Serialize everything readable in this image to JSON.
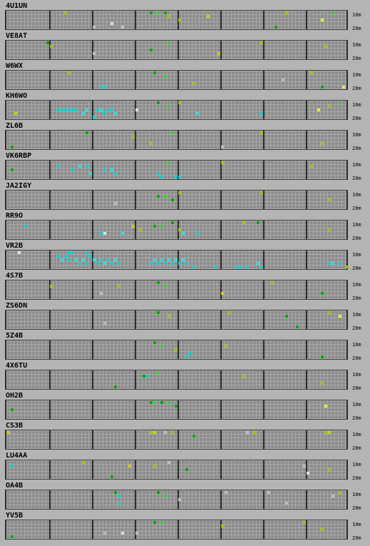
{
  "bands": [
    "10m",
    "20m"
  ],
  "colors": {
    "background": "#b4b4b4",
    "grid_fill": "#8c8c8c",
    "grid_line": "#a9a9a9",
    "separator": "#2e2e2e",
    "signal_palette": [
      "#00a000",
      "#33cc33",
      "#a0c000",
      "#cccc00",
      "#e8e840",
      "#bbbbbb",
      "#dddddd",
      "#00cccc",
      "#22e0e0"
    ]
  },
  "beacons": [
    {
      "callsign": "4U1UN",
      "spots": [
        [
          40,
          0,
          0
        ],
        [
          42,
          0,
          1
        ],
        [
          44,
          0,
          0
        ],
        [
          45,
          1,
          2
        ],
        [
          56,
          1,
          3
        ],
        [
          78,
          0,
          2
        ],
        [
          91,
          0,
          1
        ],
        [
          24,
          4,
          5
        ],
        [
          29,
          3,
          6
        ],
        [
          32,
          4,
          5
        ],
        [
          16,
          0,
          2
        ],
        [
          48,
          2,
          2
        ],
        [
          75,
          4,
          0
        ],
        [
          88,
          2,
          4
        ]
      ]
    },
    {
      "callsign": "VE8AT",
      "spots": [
        [
          12,
          1,
          2
        ],
        [
          24,
          3,
          5
        ],
        [
          59,
          3,
          3
        ],
        [
          71,
          0,
          2
        ],
        [
          89,
          1,
          2
        ],
        [
          45,
          0,
          1
        ],
        [
          40,
          2,
          0
        ],
        [
          11,
          0,
          0
        ]
      ]
    },
    {
      "callsign": "W6WX",
      "spots": [
        [
          17,
          0,
          2
        ],
        [
          26,
          4,
          7
        ],
        [
          27,
          4,
          7
        ],
        [
          41,
          0,
          0
        ],
        [
          44,
          1,
          1
        ],
        [
          52,
          3,
          2
        ],
        [
          77,
          2,
          5
        ],
        [
          85,
          0,
          2
        ],
        [
          88,
          4,
          0
        ],
        [
          94,
          4,
          4
        ]
      ]
    },
    {
      "callsign": "KH6WO",
      "spots": [
        [
          14,
          2,
          7
        ],
        [
          15,
          2,
          7
        ],
        [
          16,
          2,
          7
        ],
        [
          17,
          2,
          7
        ],
        [
          18,
          2,
          7
        ],
        [
          19,
          2,
          7
        ],
        [
          22,
          2,
          8
        ],
        [
          25,
          2,
          7
        ],
        [
          26,
          2,
          8
        ],
        [
          28,
          2,
          7
        ],
        [
          29,
          2,
          7
        ],
        [
          21,
          3,
          8
        ],
        [
          24,
          4,
          7
        ],
        [
          27,
          3,
          7
        ],
        [
          30,
          3,
          8
        ],
        [
          42,
          0,
          0
        ],
        [
          45,
          1,
          1
        ],
        [
          48,
          0,
          2
        ],
        [
          53,
          3,
          8
        ],
        [
          71,
          3,
          7
        ],
        [
          87,
          2,
          4
        ],
        [
          90,
          1,
          2
        ],
        [
          93,
          0,
          1
        ],
        [
          36,
          2,
          6
        ],
        [
          2,
          3,
          3
        ]
      ]
    },
    {
      "callsign": "ZL6B",
      "spots": [
        [
          35,
          1,
          2
        ],
        [
          40,
          3,
          2
        ],
        [
          46,
          0,
          1
        ],
        [
          71,
          0,
          2
        ],
        [
          1,
          4,
          0
        ],
        [
          60,
          4,
          5
        ],
        [
          88,
          3,
          2
        ],
        [
          22,
          0,
          0
        ]
      ]
    },
    {
      "callsign": "VK6RBP",
      "spots": [
        [
          14,
          1,
          7
        ],
        [
          18,
          2,
          7
        ],
        [
          20,
          1,
          8
        ],
        [
          22,
          1,
          7
        ],
        [
          23,
          3,
          8
        ],
        [
          27,
          2,
          7
        ],
        [
          29,
          2,
          8
        ],
        [
          30,
          3,
          7
        ],
        [
          42,
          3,
          7
        ],
        [
          43,
          4,
          7
        ],
        [
          47,
          4,
          7
        ],
        [
          48,
          4,
          7
        ],
        [
          1,
          2,
          0
        ],
        [
          45,
          0,
          1
        ],
        [
          60,
          0,
          2
        ],
        [
          85,
          1,
          2
        ]
      ]
    },
    {
      "callsign": "JA2IGY",
      "spots": [
        [
          42,
          1,
          0
        ],
        [
          44,
          1,
          1
        ],
        [
          46,
          2,
          0
        ],
        [
          48,
          0,
          2
        ],
        [
          71,
          0,
          2
        ],
        [
          90,
          2,
          2
        ],
        [
          30,
          3,
          5
        ]
      ]
    },
    {
      "callsign": "RR9O",
      "spots": [
        [
          5,
          1,
          7
        ],
        [
          26,
          3,
          7
        ],
        [
          27,
          3,
          6
        ],
        [
          32,
          3,
          8
        ],
        [
          35,
          1,
          3
        ],
        [
          37,
          2,
          2
        ],
        [
          41,
          1,
          0
        ],
        [
          43,
          1,
          1
        ],
        [
          46,
          0,
          0
        ],
        [
          48,
          2,
          2
        ],
        [
          49,
          3,
          8
        ],
        [
          53,
          3,
          7
        ],
        [
          66,
          0,
          2
        ],
        [
          70,
          0,
          0
        ],
        [
          90,
          2,
          2
        ]
      ]
    },
    {
      "callsign": "VR2B",
      "spots": [
        [
          3,
          0,
          6
        ],
        [
          14,
          1,
          7
        ],
        [
          15,
          2,
          8
        ],
        [
          16,
          1,
          7
        ],
        [
          17,
          2,
          7
        ],
        [
          18,
          0,
          7
        ],
        [
          19,
          2,
          8
        ],
        [
          20,
          3,
          7
        ],
        [
          21,
          2,
          8
        ],
        [
          22,
          3,
          7
        ],
        [
          23,
          1,
          7
        ],
        [
          24,
          2,
          8
        ],
        [
          25,
          3,
          7
        ],
        [
          26,
          2,
          7
        ],
        [
          27,
          3,
          8
        ],
        [
          28,
          2,
          7
        ],
        [
          29,
          3,
          7
        ],
        [
          30,
          2,
          8
        ],
        [
          31,
          3,
          7
        ],
        [
          40,
          3,
          7
        ],
        [
          41,
          2,
          8
        ],
        [
          42,
          3,
          7
        ],
        [
          43,
          2,
          8
        ],
        [
          44,
          3,
          7
        ],
        [
          45,
          2,
          8
        ],
        [
          46,
          3,
          7
        ],
        [
          47,
          2,
          8
        ],
        [
          48,
          3,
          7
        ],
        [
          49,
          2,
          8
        ],
        [
          50,
          3,
          7
        ],
        [
          52,
          4,
          7
        ],
        [
          58,
          4,
          7
        ],
        [
          64,
          4,
          7
        ],
        [
          65,
          4,
          7
        ],
        [
          67,
          4,
          7
        ],
        [
          70,
          3,
          8
        ],
        [
          71,
          4,
          7
        ],
        [
          90,
          3,
          7
        ],
        [
          91,
          3,
          8
        ],
        [
          93,
          3,
          7
        ],
        [
          95,
          4,
          2
        ],
        [
          17,
          0,
          7
        ],
        [
          22,
          0,
          7
        ]
      ]
    },
    {
      "callsign": "4S7B",
      "spots": [
        [
          12,
          1,
          2
        ],
        [
          31,
          1,
          2
        ],
        [
          42,
          0,
          0
        ],
        [
          44,
          1,
          1
        ],
        [
          60,
          3,
          3
        ],
        [
          74,
          0,
          2
        ],
        [
          88,
          3,
          0
        ],
        [
          26,
          3,
          5
        ]
      ]
    },
    {
      "callsign": "ZS6DN",
      "spots": [
        [
          27,
          3,
          5
        ],
        [
          42,
          0,
          0
        ],
        [
          45,
          1,
          2
        ],
        [
          62,
          0,
          2
        ],
        [
          78,
          1,
          0
        ],
        [
          90,
          0,
          2
        ],
        [
          93,
          1,
          4
        ],
        [
          81,
          4,
          0
        ]
      ]
    },
    {
      "callsign": "5Z4B",
      "spots": [
        [
          41,
          0,
          0
        ],
        [
          43,
          1,
          1
        ],
        [
          47,
          2,
          2
        ],
        [
          51,
          3,
          7
        ],
        [
          50,
          4,
          7
        ],
        [
          61,
          1,
          2
        ],
        [
          88,
          4,
          0
        ]
      ]
    },
    {
      "callsign": "4X6TU",
      "spots": [
        [
          30,
          4,
          0
        ],
        [
          38,
          1,
          0
        ],
        [
          39,
          1,
          7
        ],
        [
          42,
          0,
          1
        ],
        [
          66,
          1,
          2
        ],
        [
          88,
          3,
          2
        ]
      ]
    },
    {
      "callsign": "OH2B",
      "spots": [
        [
          40,
          0,
          0
        ],
        [
          41,
          0,
          1
        ],
        [
          43,
          0,
          0
        ],
        [
          45,
          0,
          1
        ],
        [
          47,
          1,
          0
        ],
        [
          89,
          1,
          4
        ],
        [
          1,
          2,
          0
        ]
      ]
    },
    {
      "callsign": "CS3B",
      "spots": [
        [
          0,
          0,
          3
        ],
        [
          40,
          0,
          2
        ],
        [
          41,
          0,
          3
        ],
        [
          44,
          0,
          5
        ],
        [
          46,
          0,
          2
        ],
        [
          52,
          1,
          0
        ],
        [
          67,
          0,
          5
        ],
        [
          69,
          0,
          2
        ],
        [
          89,
          0,
          2
        ],
        [
          90,
          0,
          3
        ]
      ]
    },
    {
      "callsign": "LU4AA",
      "spots": [
        [
          1,
          1,
          7
        ],
        [
          21,
          0,
          2
        ],
        [
          29,
          4,
          0
        ],
        [
          34,
          1,
          3
        ],
        [
          41,
          1,
          2
        ],
        [
          45,
          0,
          5
        ],
        [
          50,
          2,
          0
        ],
        [
          83,
          1,
          5
        ],
        [
          84,
          3,
          6
        ],
        [
          90,
          2,
          2
        ]
      ]
    },
    {
      "callsign": "OA4B",
      "spots": [
        [
          30,
          0,
          0
        ],
        [
          31,
          1,
          7
        ],
        [
          31,
          3,
          7
        ],
        [
          42,
          0,
          0
        ],
        [
          44,
          1,
          1
        ],
        [
          48,
          2,
          5
        ],
        [
          61,
          0,
          5
        ],
        [
          73,
          0,
          5
        ],
        [
          78,
          3,
          5
        ],
        [
          91,
          1,
          5
        ],
        [
          93,
          0,
          2
        ]
      ]
    },
    {
      "callsign": "YV5B",
      "spots": [
        [
          1,
          4,
          0
        ],
        [
          27,
          3,
          5
        ],
        [
          32,
          3,
          6
        ],
        [
          36,
          3,
          5
        ],
        [
          41,
          0,
          0
        ],
        [
          43,
          0,
          1
        ],
        [
          60,
          1,
          2
        ],
        [
          83,
          0,
          2
        ],
        [
          88,
          2,
          2
        ]
      ]
    }
  ]
}
